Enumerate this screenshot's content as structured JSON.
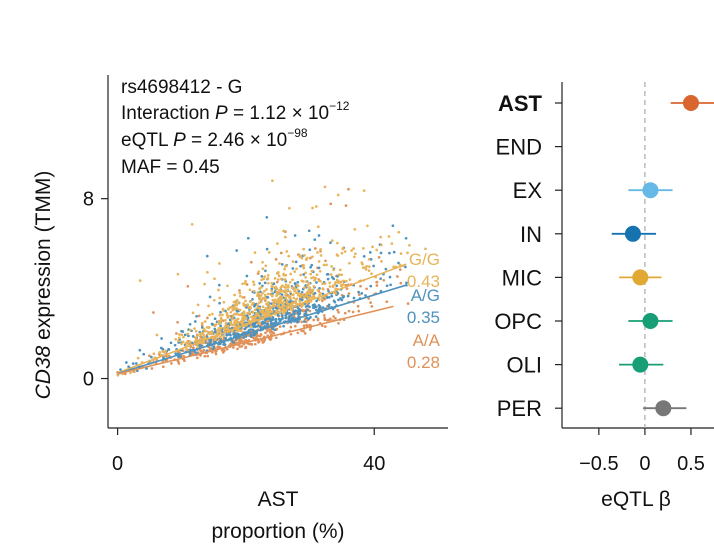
{
  "chart_data": [
    {
      "type": "scatter",
      "title_lines": {
        "snp": "rs4698412 - G",
        "interaction_prefix": "Interaction ",
        "interaction_p": "P",
        "interaction_value": " = 1.12 × 10",
        "interaction_exp": "−12",
        "eqtl_prefix": "eQTL ",
        "eqtl_p": "P",
        "eqtl_value": " = 2.46 × 10",
        "eqtl_exp": "−98",
        "maf": "MAF = 0.45"
      },
      "ylabel_gene": "CD38",
      "ylabel_rest": " expression (TMM)",
      "xlabel_line1": "AST",
      "xlabel_line2": "proportion (%)",
      "xlim": [
        -1.5,
        51.5
      ],
      "ylim": [
        -2.2,
        13.5
      ],
      "x_ticks": [
        0,
        40
      ],
      "x_tick_labels": [
        "0",
        "40"
      ],
      "y_ticks": [
        0,
        8
      ],
      "y_tick_labels": [
        "0",
        "8"
      ],
      "series": [
        {
          "genotype": "G/G",
          "value_label": "0.43",
          "color": "#E8B45A",
          "intercept": 0.25,
          "slope": 0.1075,
          "fit_x": [
            0,
            45
          ],
          "cloud_center": 23,
          "cloud_spread": 7,
          "n": 650
        },
        {
          "genotype": "A/G",
          "value_label": "0.35",
          "color": "#4E93BE",
          "intercept": 0.22,
          "slope": 0.0875,
          "fit_x": [
            0,
            45
          ],
          "cloud_center": 22,
          "cloud_spread": 7,
          "n": 650
        },
        {
          "genotype": "A/A",
          "value_label": "0.28",
          "color": "#E0925A",
          "intercept": 0.2,
          "slope": 0.07,
          "fit_x": [
            0,
            43
          ],
          "cloud_center": 21,
          "cloud_spread": 7,
          "n": 500
        }
      ]
    },
    {
      "type": "forest",
      "xlabel": "eQTL β",
      "xlim": [
        -0.9,
        0.75
      ],
      "x_ticks": [
        -0.5,
        0,
        0.5
      ],
      "x_tick_labels": [
        "−0.5",
        "0",
        "0.5"
      ],
      "reference_line": 0,
      "rows": [
        {
          "label": "AST",
          "beta": 0.5,
          "ci": [
            0.28,
            0.75
          ],
          "color": "#D9662E",
          "bold": true
        },
        {
          "label": "END",
          "beta": null,
          "ci": null,
          "color": "#999999",
          "bold": false
        },
        {
          "label": "EX",
          "beta": 0.06,
          "ci": [
            -0.18,
            0.3
          ],
          "color": "#66B8E6",
          "bold": false
        },
        {
          "label": "IN",
          "beta": -0.13,
          "ci": [
            -0.36,
            0.12
          ],
          "color": "#1673B0",
          "bold": false
        },
        {
          "label": "MIC",
          "beta": -0.05,
          "ci": [
            -0.28,
            0.18
          ],
          "color": "#E1A934",
          "bold": false
        },
        {
          "label": "OPC",
          "beta": 0.06,
          "ci": [
            -0.18,
            0.3
          ],
          "color": "#179E76",
          "bold": false
        },
        {
          "label": "OLI",
          "beta": -0.05,
          "ci": [
            -0.28,
            0.2
          ],
          "color": "#179E76",
          "bold": false
        },
        {
          "label": "PER",
          "beta": 0.2,
          "ci": [
            -0.02,
            0.45
          ],
          "color": "#777777",
          "bold": false
        }
      ]
    }
  ]
}
